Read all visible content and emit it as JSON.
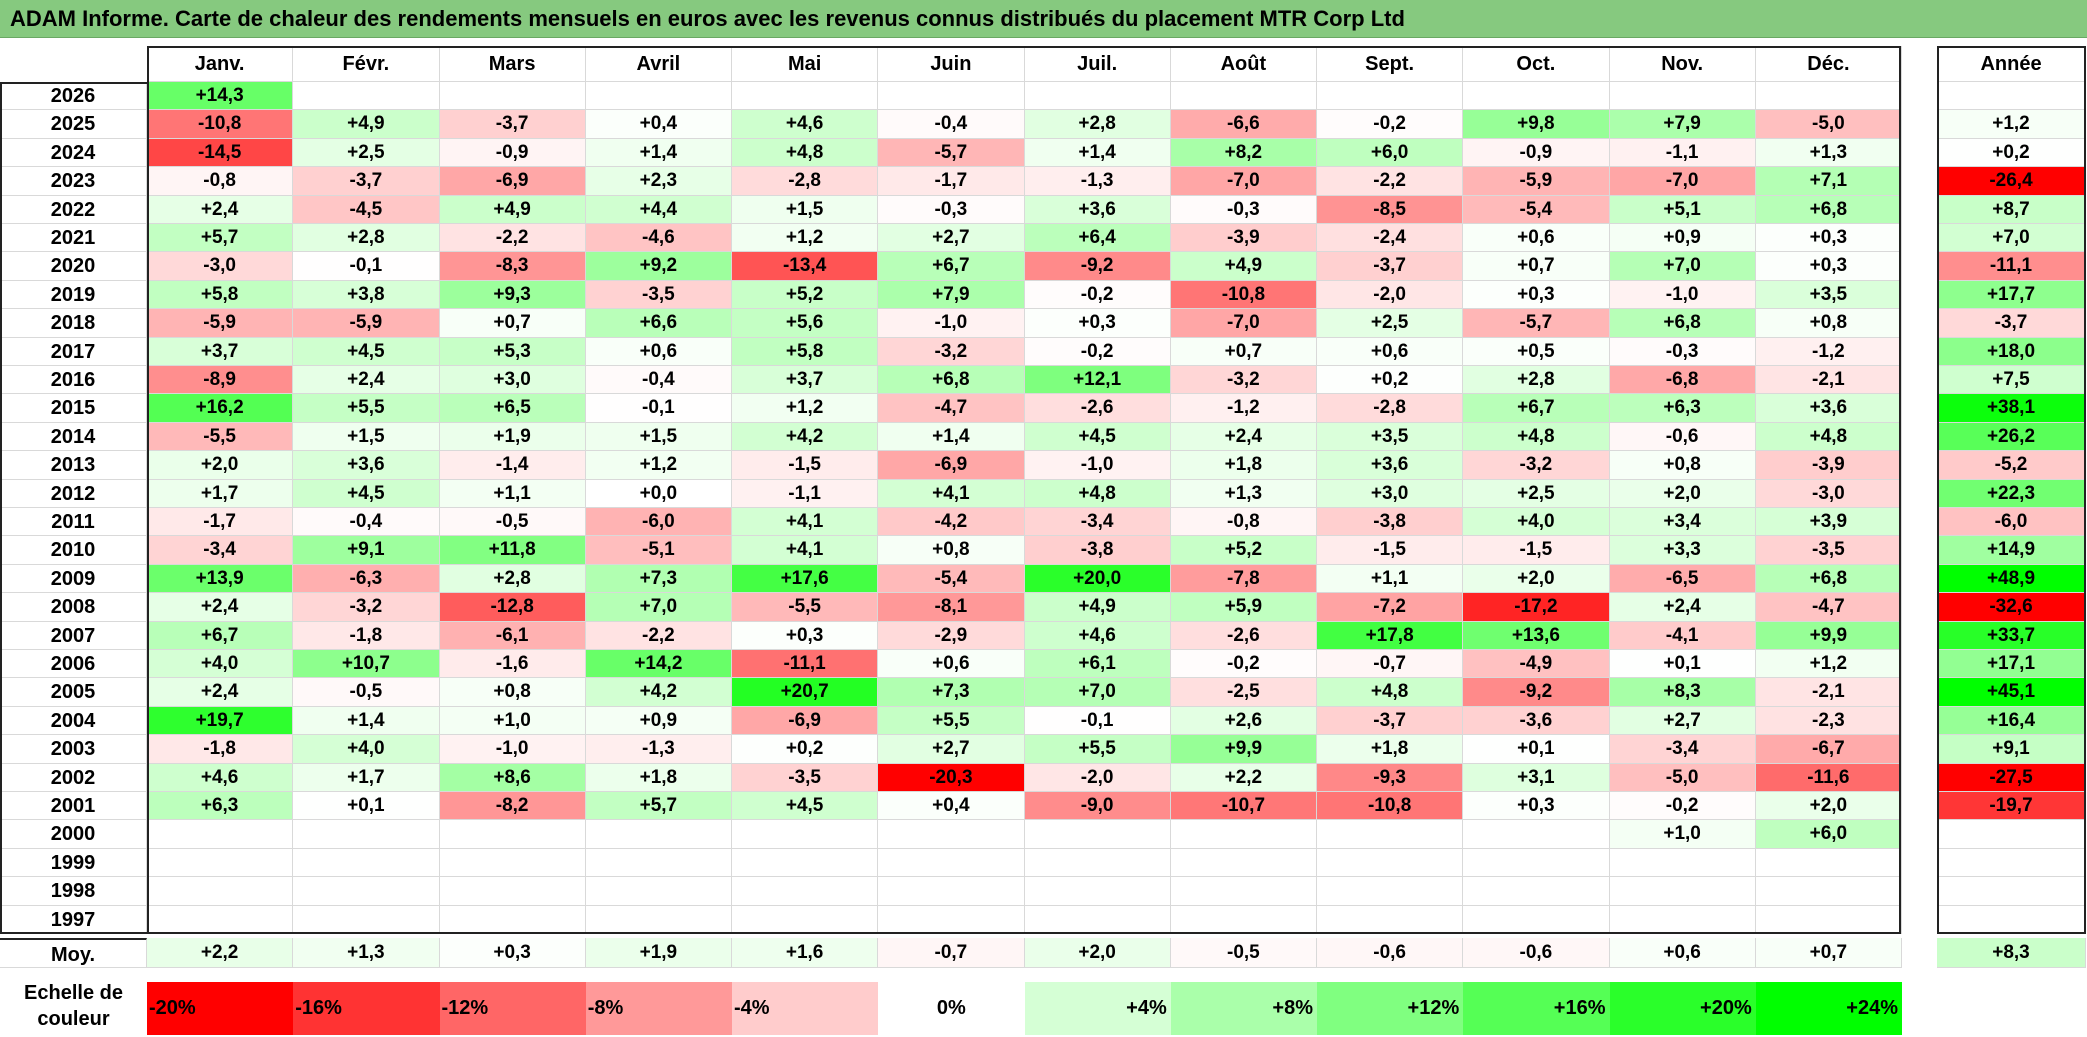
{
  "title": "ADAM Informe. Carte de chaleur des rendements mensuels en euros avec les revenus connus distribués du placement MTR Corp Ltd",
  "chart_data": {
    "type": "heatmap",
    "title": "ADAM Informe. Carte de chaleur des rendements mensuels en euros avec les revenus connus distribués du placement MTR Corp Ltd",
    "months": [
      "Janv.",
      "Févr.",
      "Mars",
      "Avril",
      "Mai",
      "Juin",
      "Juil.",
      "Août",
      "Sept.",
      "Oct.",
      "Nov.",
      "Déc."
    ],
    "year_header": "Année",
    "years": [
      "2026",
      "2025",
      "2024",
      "2023",
      "2022",
      "2021",
      "2020",
      "2019",
      "2018",
      "2017",
      "2016",
      "2015",
      "2014",
      "2013",
      "2012",
      "2011",
      "2010",
      "2009",
      "2008",
      "2007",
      "2006",
      "2005",
      "2004",
      "2003",
      "2002",
      "2001",
      "2000",
      "1999",
      "1998",
      "1997"
    ],
    "values": [
      [
        "+14,3",
        "",
        "",
        "",
        "",
        "",
        "",
        "",
        "",
        "",
        "",
        ""
      ],
      [
        "-10,8",
        "+4,9",
        "-3,7",
        "+0,4",
        "+4,6",
        "-0,4",
        "+2,8",
        "-6,6",
        "-0,2",
        "+9,8",
        "+7,9",
        "-5,0"
      ],
      [
        "-14,5",
        "+2,5",
        "-0,9",
        "+1,4",
        "+4,8",
        "-5,7",
        "+1,4",
        "+8,2",
        "+6,0",
        "-0,9",
        "-1,1",
        "+1,3"
      ],
      [
        "-0,8",
        "-3,7",
        "-6,9",
        "+2,3",
        "-2,8",
        "-1,7",
        "-1,3",
        "-7,0",
        "-2,2",
        "-5,9",
        "-7,0",
        "+7,1"
      ],
      [
        "+2,4",
        "-4,5",
        "+4,9",
        "+4,4",
        "+1,5",
        "-0,3",
        "+3,6",
        "-0,3",
        "-8,5",
        "-5,4",
        "+5,1",
        "+6,8"
      ],
      [
        "+5,7",
        "+2,8",
        "-2,2",
        "-4,6",
        "+1,2",
        "+2,7",
        "+6,4",
        "-3,9",
        "-2,4",
        "+0,6",
        "+0,9",
        "+0,3"
      ],
      [
        "-3,0",
        "-0,1",
        "-8,3",
        "+9,2",
        "-13,4",
        "+6,7",
        "-9,2",
        "+4,9",
        "-3,7",
        "+0,7",
        "+7,0",
        "+0,3"
      ],
      [
        "+5,8",
        "+3,8",
        "+9,3",
        "-3,5",
        "+5,2",
        "+7,9",
        "-0,2",
        "-10,8",
        "-2,0",
        "+0,3",
        "-1,0",
        "+3,5"
      ],
      [
        "-5,9",
        "-5,9",
        "+0,7",
        "+6,6",
        "+5,6",
        "-1,0",
        "+0,3",
        "-7,0",
        "+2,5",
        "-5,7",
        "+6,8",
        "+0,8"
      ],
      [
        "+3,7",
        "+4,5",
        "+5,3",
        "+0,6",
        "+5,8",
        "-3,2",
        "-0,2",
        "+0,7",
        "+0,6",
        "+0,5",
        "-0,3",
        "-1,2"
      ],
      [
        "-8,9",
        "+2,4",
        "+3,0",
        "-0,4",
        "+3,7",
        "+6,8",
        "+12,1",
        "-3,2",
        "+0,2",
        "+2,8",
        "-6,8",
        "-2,1"
      ],
      [
        "+16,2",
        "+5,5",
        "+6,5",
        "-0,1",
        "+1,2",
        "-4,7",
        "-2,6",
        "-1,2",
        "-2,8",
        "+6,7",
        "+6,3",
        "+3,6"
      ],
      [
        "-5,5",
        "+1,5",
        "+1,9",
        "+1,5",
        "+4,2",
        "+1,4",
        "+4,5",
        "+2,4",
        "+3,5",
        "+4,8",
        "-0,6",
        "+4,8"
      ],
      [
        "+2,0",
        "+3,6",
        "-1,4",
        "+1,2",
        "-1,5",
        "-6,9",
        "-1,0",
        "+1,8",
        "+3,6",
        "-3,2",
        "+0,8",
        "-3,9"
      ],
      [
        "+1,7",
        "+4,5",
        "+1,1",
        "+0,0",
        "-1,1",
        "+4,1",
        "+4,8",
        "+1,3",
        "+3,0",
        "+2,5",
        "+2,0",
        "-3,0"
      ],
      [
        "-1,7",
        "-0,4",
        "-0,5",
        "-6,0",
        "+4,1",
        "-4,2",
        "-3,4",
        "-0,8",
        "-3,8",
        "+4,0",
        "+3,4",
        "+3,9"
      ],
      [
        "-3,4",
        "+9,1",
        "+11,8",
        "-5,1",
        "+4,1",
        "+0,8",
        "-3,8",
        "+5,2",
        "-1,5",
        "-1,5",
        "+3,3",
        "-3,5"
      ],
      [
        "+13,9",
        "-6,3",
        "+2,8",
        "+7,3",
        "+17,6",
        "-5,4",
        "+20,0",
        "-7,8",
        "+1,1",
        "+2,0",
        "-6,5",
        "+6,8"
      ],
      [
        "+2,4",
        "-3,2",
        "-12,8",
        "+7,0",
        "-5,5",
        "-8,1",
        "+4,9",
        "+5,9",
        "-7,2",
        "-17,2",
        "+2,4",
        "-4,7"
      ],
      [
        "+6,7",
        "-1,8",
        "-6,1",
        "-2,2",
        "+0,3",
        "-2,9",
        "+4,6",
        "-2,6",
        "+17,8",
        "+13,6",
        "-4,1",
        "+9,9"
      ],
      [
        "+4,0",
        "+10,7",
        "-1,6",
        "+14,2",
        "-11,1",
        "+0,6",
        "+6,1",
        "-0,2",
        "-0,7",
        "-4,9",
        "+0,1",
        "+1,2"
      ],
      [
        "+2,4",
        "-0,5",
        "+0,8",
        "+4,2",
        "+20,7",
        "+7,3",
        "+7,0",
        "-2,5",
        "+4,8",
        "-9,2",
        "+8,3",
        "-2,1"
      ],
      [
        "+19,7",
        "+1,4",
        "+1,0",
        "+0,9",
        "-6,9",
        "+5,5",
        "-0,1",
        "+2,6",
        "-3,7",
        "-3,6",
        "+2,7",
        "-2,3"
      ],
      [
        "-1,8",
        "+4,0",
        "-1,0",
        "-1,3",
        "+0,2",
        "+2,7",
        "+5,5",
        "+9,9",
        "+1,8",
        "+0,1",
        "-3,4",
        "-6,7"
      ],
      [
        "+4,6",
        "+1,7",
        "+8,6",
        "+1,8",
        "-3,5",
        "-20,3",
        "-2,0",
        "+2,2",
        "-9,3",
        "+3,1",
        "-5,0",
        "-11,6"
      ],
      [
        "+6,3",
        "+0,1",
        "-8,2",
        "+5,7",
        "+4,5",
        "+0,4",
        "-9,0",
        "-10,7",
        "-10,8",
        "+0,3",
        "-0,2",
        "+2,0"
      ],
      [
        "",
        "",
        "",
        "",
        "",
        "",
        "",
        "",
        "",
        "",
        "+1,0",
        "+6,0"
      ],
      [
        "",
        "",
        "",
        "",
        "",
        "",
        "",
        "",
        "",
        "",
        "",
        ""
      ],
      [
        "",
        "",
        "",
        "",
        "",
        "",
        "",
        "",
        "",
        "",
        "",
        ""
      ],
      [
        "",
        "",
        "",
        "",
        "",
        "",
        "",
        "",
        "",
        "",
        "",
        ""
      ]
    ],
    "annual": [
      "",
      "+1,2",
      "+0,2",
      "-26,4",
      "+8,7",
      "+7,0",
      "-11,1",
      "+17,7",
      "-3,7",
      "+18,0",
      "+7,5",
      "+38,1",
      "+26,2",
      "-5,2",
      "+22,3",
      "-6,0",
      "+14,9",
      "+48,9",
      "-32,6",
      "+33,7",
      "+17,1",
      "+45,1",
      "+16,4",
      "+9,1",
      "-27,5",
      "-19,7",
      "",
      "",
      "",
      ""
    ],
    "average_label": "Moy.",
    "averages": [
      "+2,2",
      "+1,3",
      "+0,3",
      "+1,9",
      "+1,6",
      "-0,7",
      "+2,0",
      "-0,5",
      "-0,6",
      "-0,6",
      "+0,6",
      "+0,7"
    ],
    "average_annual": "+8,3",
    "scale_label": "Echelle de couleur",
    "scale": [
      "-20%",
      "-16%",
      "-12%",
      "-8%",
      "-4%",
      "0%",
      "+4%",
      "+8%",
      "+12%",
      "+16%",
      "+20%",
      "+24%"
    ],
    "colors": {
      "title_bar": "#86c97f",
      "strong_negative": "#ff0000",
      "neutral": "#ffffff",
      "strong_positive": "#00ff00"
    }
  }
}
